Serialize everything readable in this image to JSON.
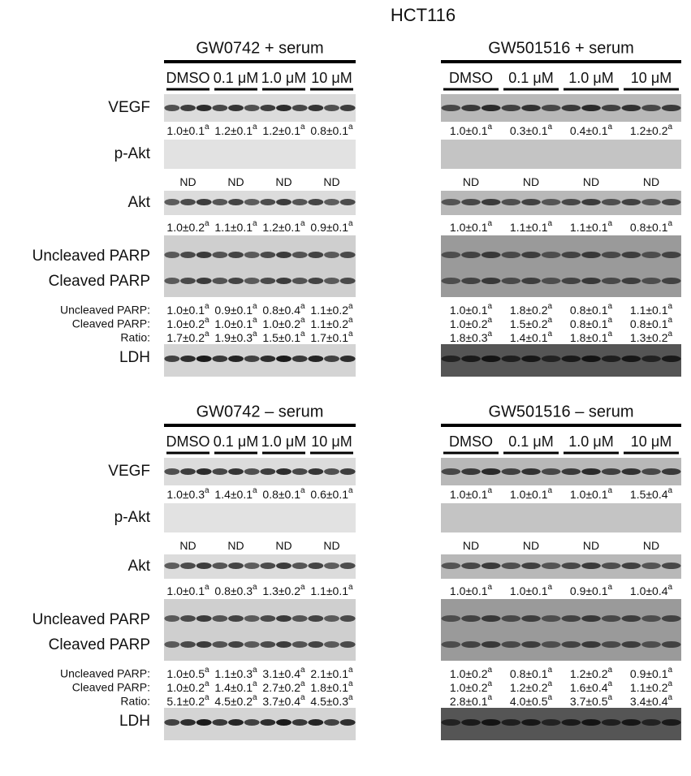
{
  "title": "HCT116",
  "row_labels": {
    "vegf": "VEGF",
    "pakt": "p-Akt",
    "akt": "Akt",
    "uncleaved": "Uncleaved PARP",
    "cleaved": "Cleaved PARP",
    "ldh": "LDH"
  },
  "quant_labels": [
    "Uncleaved PARP:",
    "Cleaved PARP:",
    "Ratio:"
  ],
  "superscript": "a",
  "lanes": [
    "DMSO",
    "0.1 μM",
    "1.0 μM",
    "10 μM"
  ],
  "panels": [
    {
      "title": "GW0742 + serum",
      "vegf": [
        "1.0±0.1",
        "1.2±0.1",
        "1.2±0.1",
        "0.8±0.1"
      ],
      "pakt": [
        "ND",
        "ND",
        "ND",
        "ND"
      ],
      "akt": [
        "1.0±0.2",
        "1.1±0.1",
        "1.2±0.1",
        "0.9±0.1"
      ],
      "uncleaved": [
        "1.0±0.1",
        "0.9±0.1",
        "0.8±0.4",
        "1.1±0.2"
      ],
      "cleaved": [
        "1.0±0.2",
        "1.0±0.1",
        "1.0±0.2",
        "1.1±0.2"
      ],
      "ratio": [
        "1.7±0.2",
        "1.9±0.3",
        "1.5±0.1",
        "1.7±0.1"
      ]
    },
    {
      "title": "GW501516 + serum",
      "vegf": [
        "1.0±0.1",
        "0.3±0.1",
        "0.4±0.1",
        "1.2±0.2"
      ],
      "pakt": [
        "ND",
        "ND",
        "ND",
        "ND"
      ],
      "akt": [
        "1.0±0.1",
        "1.1±0.1",
        "1.1±0.1",
        "0.8±0.1"
      ],
      "uncleaved": [
        "1.0±0.1",
        "1.8±0.2",
        "0.8±0.1",
        "1.1±0.1"
      ],
      "cleaved": [
        "1.0±0.2",
        "1.5±0.2",
        "0.8±0.1",
        "0.8±0.1"
      ],
      "ratio": [
        "1.8±0.3",
        "1.4±0.1",
        "1.8±0.1",
        "1.3±0.2"
      ]
    },
    {
      "title": "GW0742 – serum",
      "vegf": [
        "1.0±0.3",
        "1.4±0.1",
        "0.8±0.1",
        "0.6±0.1"
      ],
      "pakt": [
        "ND",
        "ND",
        "ND",
        "ND"
      ],
      "akt": [
        "1.0±0.1",
        "0.8±0.3",
        "1.3±0.2",
        "1.1±0.1"
      ],
      "uncleaved": [
        "1.0±0.5",
        "1.1±0.3",
        "3.1±0.4",
        "2.1±0.1"
      ],
      "cleaved": [
        "1.0±0.2",
        "1.4±0.1",
        "2.7±0.2",
        "1.8±0.1"
      ],
      "ratio": [
        "5.1±0.2",
        "4.5±0.2",
        "3.7±0.4",
        "4.5±0.3"
      ]
    },
    {
      "title": "GW501516 – serum",
      "vegf": [
        "1.0±0.1",
        "1.0±0.1",
        "1.0±0.1",
        "1.5±0.4"
      ],
      "pakt": [
        "ND",
        "ND",
        "ND",
        "ND"
      ],
      "akt": [
        "1.0±0.1",
        "1.0±0.1",
        "0.9±0.1",
        "1.0±0.4"
      ],
      "uncleaved": [
        "1.0±0.2",
        "0.8±0.1",
        "1.2±0.2",
        "0.9±0.1"
      ],
      "cleaved": [
        "1.0±0.2",
        "1.2±0.2",
        "1.6±0.4",
        "1.1±0.2"
      ],
      "ratio": [
        "2.8±0.1",
        "4.0±0.5",
        "3.7±0.5",
        "3.4±0.4"
      ]
    }
  ]
}
